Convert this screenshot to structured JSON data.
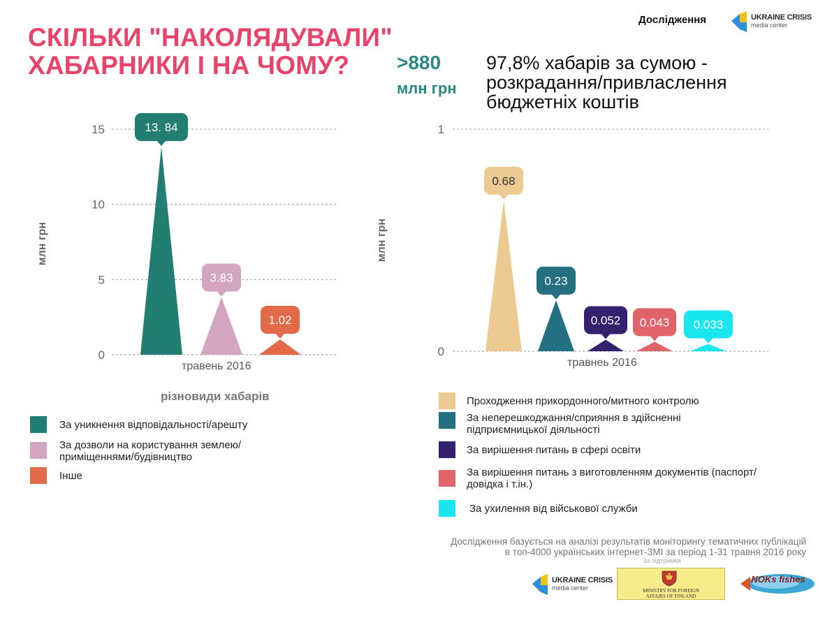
{
  "header": {
    "title_lines": [
      "СКІЛЬКИ \"НАКОЛЯДУВАЛИ\"",
      "ХАБАРНИКИ І НА ЧОМУ?"
    ],
    "top_label": "Дослідження",
    "brand_line1": "UKRAINE CRISIS",
    "brand_line2": "media center",
    "brand_icon": "ukraine-crisis-logo-icon"
  },
  "highlight": {
    "value": ">880",
    "unit": "млн грн",
    "description": "97,8% хабарів за сумою - розкрадання/привласлення бюджетніх коштів"
  },
  "chart_data": [
    {
      "type": "bar",
      "shape": "triangle",
      "categories": [
        "травень 2016"
      ],
      "ylabel": "млн грн",
      "xlabel": "різновиди хабарів",
      "ylim": [
        0,
        15
      ],
      "yticks": [
        0,
        5,
        10,
        15
      ],
      "grid": true,
      "series": [
        {
          "name": "За уникнення відповідальності/арешту",
          "values": [
            13.84
          ],
          "label": "13. 84",
          "color": "#237e72"
        },
        {
          "name": "За дозволи на користування землею/приміщеннями/будівництво",
          "values": [
            3.83
          ],
          "label": "3.83",
          "color": "#d4a5c1"
        },
        {
          "name": "Інше",
          "values": [
            1.02
          ],
          "label": "1.02",
          "color": "#e36a48"
        }
      ]
    },
    {
      "type": "bar",
      "shape": "triangle",
      "categories": [
        "травнеь 2016"
      ],
      "ylabel": "млн грн",
      "ylim": [
        0,
        1
      ],
      "yticks": [
        0,
        1
      ],
      "grid": true,
      "series": [
        {
          "name": "Проходження прикордонного/митного контролю",
          "values": [
            0.68
          ],
          "label": "0.68",
          "color": "#ecca91"
        },
        {
          "name": "За неперешкоджання/сприяння в здійсненні підприємницької діяльності",
          "values": [
            0.23
          ],
          "label": "0.23",
          "color": "#256f82"
        },
        {
          "name": "За вирішення питань в сфері освіти",
          "values": [
            0.052
          ],
          "label": "0.052",
          "color": "#35226e"
        },
        {
          "name": "За вирішення питань з виготовленням документів (паспорт/довідка і т.ін.)",
          "values": [
            0.043
          ],
          "label": "0.043",
          "color": "#e0646a"
        },
        {
          "name": "За ухилення від військової служби",
          "values": [
            0.033
          ],
          "label": "0.033",
          "color": "#19e6ef"
        }
      ]
    }
  ],
  "legend_left": [
    {
      "text": "За уникнення відповідальності/арешту",
      "color": "#237e72"
    },
    {
      "text": "За дозволи на користування землею/приміщеннями/будівництво",
      "color": "#d4a5c1"
    },
    {
      "text": "Інше",
      "color": "#e36a48"
    }
  ],
  "legend_right": [
    {
      "text": "Проходження прикордонного/митного контролю",
      "color": "#ecca91"
    },
    {
      "text": "За неперешкоджання/сприяння в здійсненні підприємницької діяльності",
      "color": "#256f82"
    },
    {
      "text": "За вирішення питань в сфері освіти",
      "color": "#35226e"
    },
    {
      "text": "За вирішення питань з виготовленням документів (паспорт/довідка і т.ін.)",
      "color": "#e0646a"
    },
    {
      "text": "За ухилення від військової служби",
      "color": "#19e6ef"
    }
  ],
  "footer": {
    "note_line1": "Дослідження базується на аналізі результатів моніторингу тематичних публікацій",
    "note_line2": "в топ-4000 українських інтернет-ЗМІ за період 1-31 травня 2016 року",
    "support_label": "За підтримки",
    "partner1_line1": "UKRAINE CRISIS",
    "partner1_line2": "media center",
    "partner2_line1": "MINISTRY FOR FOREIGN",
    "partner2_line2": "AFFAIRS OF FINLAND",
    "partner3_text": "NOKs fishes",
    "partner2_icon": "finland-coat-of-arms-icon",
    "partner3_icon": "noks-fishes-logo-icon"
  }
}
